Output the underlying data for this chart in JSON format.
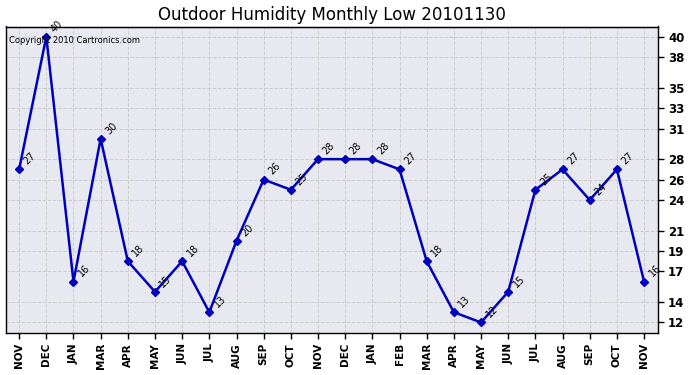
{
  "title": "Outdoor Humidity Monthly Low 20101130",
  "copyright": "Copyright 2010 Cartronics.com",
  "categories": [
    "NOV",
    "DEC",
    "JAN",
    "MAR",
    "APR",
    "MAY",
    "JUN",
    "JUL",
    "AUG",
    "SEP",
    "OCT",
    "NOV",
    "DEC",
    "JAN",
    "FEB",
    "MAR",
    "APR",
    "MAY",
    "JUN",
    "JUL",
    "AUG",
    "SEP",
    "OCT",
    "NOV"
  ],
  "values": [
    27,
    40,
    16,
    30,
    18,
    15,
    18,
    13,
    20,
    26,
    25,
    28,
    28,
    28,
    27,
    18,
    13,
    12,
    15,
    25,
    27,
    24,
    27,
    16
  ],
  "ylim": [
    11,
    41
  ],
  "yticks": [
    12,
    14,
    17,
    19,
    21,
    24,
    26,
    28,
    31,
    33,
    35,
    38,
    40
  ],
  "line_color": "#0000bb",
  "marker_color": "#0000bb",
  "grid_color": "#cccccc",
  "plot_bg_color": "#e8e8f0",
  "fig_bg_color": "#ffffff",
  "title_fontsize": 12,
  "tick_fontsize": 8
}
